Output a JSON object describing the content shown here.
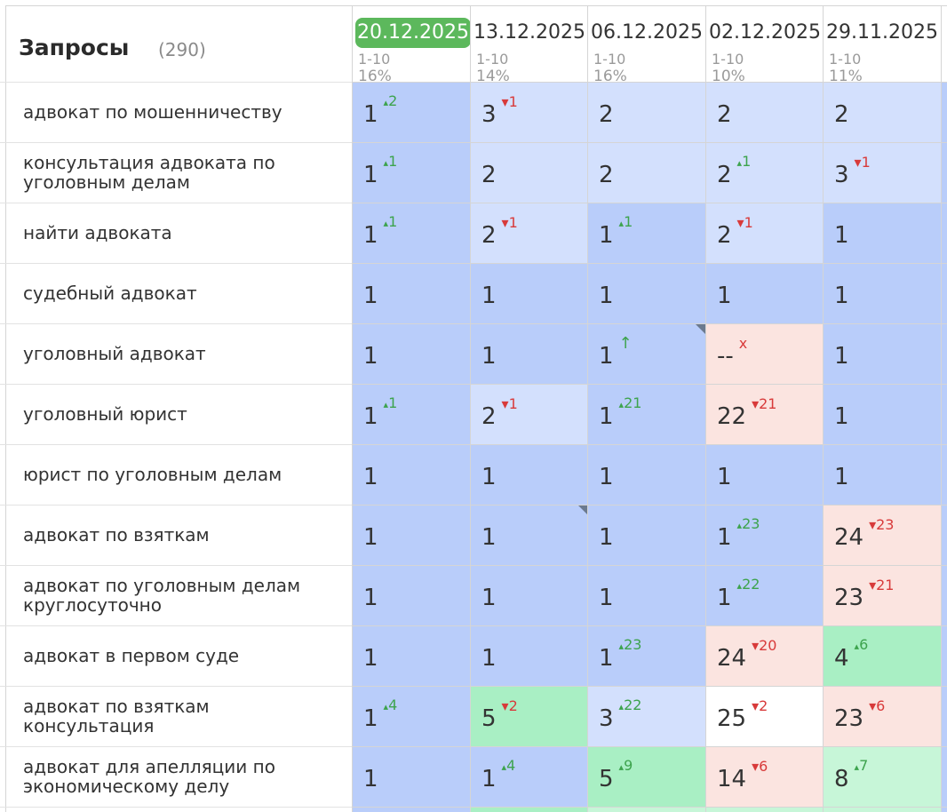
{
  "header": {
    "title": "Запросы",
    "count": "(290)",
    "dates": [
      {
        "date": "20.12.2025",
        "range": "1-10",
        "share": "16%",
        "active": true
      },
      {
        "date": "13.12.2025",
        "range": "1-10",
        "share": "14%",
        "active": false
      },
      {
        "date": "06.12.2025",
        "range": "1-10",
        "share": "16%",
        "active": false
      },
      {
        "date": "02.12.2025",
        "range": "1-10",
        "share": "10%",
        "active": false
      },
      {
        "date": "29.11.2025",
        "range": "1-10",
        "share": "11%",
        "active": false
      }
    ]
  },
  "colors": {
    "blue_strong": "#b9cdfa",
    "blue_light": "#d3e0fd",
    "green": "#a9efc4",
    "green_light": "#c7f6d8",
    "pink": "#fbe4e0",
    "white": "#ffffff"
  },
  "rows": [
    {
      "query": "адвокат по мошенничеству",
      "cells": [
        {
          "pos": "1",
          "delta": "2",
          "dir": "up",
          "bg": "blue_strong"
        },
        {
          "pos": "3",
          "delta": "1",
          "dir": "down",
          "bg": "blue_light"
        },
        {
          "pos": "2",
          "delta": "",
          "dir": "",
          "bg": "blue_light"
        },
        {
          "pos": "2",
          "delta": "",
          "dir": "",
          "bg": "blue_light"
        },
        {
          "pos": "2",
          "delta": "",
          "dir": "",
          "bg": "blue_light"
        }
      ]
    },
    {
      "query": "консультация адвоката по уголовным делам",
      "cells": [
        {
          "pos": "1",
          "delta": "1",
          "dir": "up",
          "bg": "blue_strong"
        },
        {
          "pos": "2",
          "delta": "",
          "dir": "",
          "bg": "blue_light"
        },
        {
          "pos": "2",
          "delta": "",
          "dir": "",
          "bg": "blue_light"
        },
        {
          "pos": "2",
          "delta": "1",
          "dir": "up",
          "bg": "blue_light"
        },
        {
          "pos": "3",
          "delta": "1",
          "dir": "down",
          "bg": "blue_light"
        }
      ]
    },
    {
      "query": "найти адвоката",
      "cells": [
        {
          "pos": "1",
          "delta": "1",
          "dir": "up",
          "bg": "blue_strong"
        },
        {
          "pos": "2",
          "delta": "1",
          "dir": "down",
          "bg": "blue_light"
        },
        {
          "pos": "1",
          "delta": "1",
          "dir": "up",
          "bg": "blue_strong"
        },
        {
          "pos": "2",
          "delta": "1",
          "dir": "down",
          "bg": "blue_light"
        },
        {
          "pos": "1",
          "delta": "",
          "dir": "",
          "bg": "blue_strong"
        }
      ]
    },
    {
      "query": "судебный адвокат",
      "cells": [
        {
          "pos": "1",
          "delta": "",
          "dir": "",
          "bg": "blue_strong"
        },
        {
          "pos": "1",
          "delta": "",
          "dir": "",
          "bg": "blue_strong"
        },
        {
          "pos": "1",
          "delta": "",
          "dir": "",
          "bg": "blue_strong"
        },
        {
          "pos": "1",
          "delta": "",
          "dir": "",
          "bg": "blue_strong"
        },
        {
          "pos": "1",
          "delta": "",
          "dir": "",
          "bg": "blue_strong"
        }
      ]
    },
    {
      "query": "уголовный адвокат",
      "cells": [
        {
          "pos": "1",
          "delta": "",
          "dir": "",
          "bg": "blue_strong"
        },
        {
          "pos": "1",
          "delta": "",
          "dir": "",
          "bg": "blue_strong"
        },
        {
          "pos": "1",
          "delta": "↑",
          "dir": "arrow",
          "bg": "blue_strong",
          "corner": true
        },
        {
          "pos": "--",
          "delta": "x",
          "dir": "x",
          "bg": "pink"
        },
        {
          "pos": "1",
          "delta": "",
          "dir": "",
          "bg": "blue_strong"
        }
      ]
    },
    {
      "query": "уголовный юрист",
      "cells": [
        {
          "pos": "1",
          "delta": "1",
          "dir": "up",
          "bg": "blue_strong"
        },
        {
          "pos": "2",
          "delta": "1",
          "dir": "down",
          "bg": "blue_light"
        },
        {
          "pos": "1",
          "delta": "21",
          "dir": "up",
          "bg": "blue_strong"
        },
        {
          "pos": "22",
          "delta": "21",
          "dir": "down",
          "bg": "pink"
        },
        {
          "pos": "1",
          "delta": "",
          "dir": "",
          "bg": "blue_strong"
        }
      ]
    },
    {
      "query": "юрист по уголовным делам",
      "cells": [
        {
          "pos": "1",
          "delta": "",
          "dir": "",
          "bg": "blue_strong"
        },
        {
          "pos": "1",
          "delta": "",
          "dir": "",
          "bg": "blue_strong"
        },
        {
          "pos": "1",
          "delta": "",
          "dir": "",
          "bg": "blue_strong"
        },
        {
          "pos": "1",
          "delta": "",
          "dir": "",
          "bg": "blue_strong"
        },
        {
          "pos": "1",
          "delta": "",
          "dir": "",
          "bg": "blue_strong"
        }
      ]
    },
    {
      "query": "адвокат по взяткам",
      "cells": [
        {
          "pos": "1",
          "delta": "",
          "dir": "",
          "bg": "blue_strong"
        },
        {
          "pos": "1",
          "delta": "",
          "dir": "",
          "bg": "blue_strong",
          "corner": true
        },
        {
          "pos": "1",
          "delta": "",
          "dir": "",
          "bg": "blue_strong"
        },
        {
          "pos": "1",
          "delta": "23",
          "dir": "up",
          "bg": "blue_strong"
        },
        {
          "pos": "24",
          "delta": "23",
          "dir": "down",
          "bg": "pink"
        }
      ]
    },
    {
      "query": "адвокат по уголовным делам круглосуточно",
      "cells": [
        {
          "pos": "1",
          "delta": "",
          "dir": "",
          "bg": "blue_strong"
        },
        {
          "pos": "1",
          "delta": "",
          "dir": "",
          "bg": "blue_strong"
        },
        {
          "pos": "1",
          "delta": "",
          "dir": "",
          "bg": "blue_strong"
        },
        {
          "pos": "1",
          "delta": "22",
          "dir": "up",
          "bg": "blue_strong"
        },
        {
          "pos": "23",
          "delta": "21",
          "dir": "down",
          "bg": "pink"
        }
      ]
    },
    {
      "query": "адвокат в первом суде",
      "cells": [
        {
          "pos": "1",
          "delta": "",
          "dir": "",
          "bg": "blue_strong"
        },
        {
          "pos": "1",
          "delta": "",
          "dir": "",
          "bg": "blue_strong"
        },
        {
          "pos": "1",
          "delta": "23",
          "dir": "up",
          "bg": "blue_strong"
        },
        {
          "pos": "24",
          "delta": "20",
          "dir": "down",
          "bg": "pink"
        },
        {
          "pos": "4",
          "delta": "6",
          "dir": "up",
          "bg": "green"
        }
      ]
    },
    {
      "query": "адвокат по взяткам консультация",
      "cells": [
        {
          "pos": "1",
          "delta": "4",
          "dir": "up",
          "bg": "blue_strong"
        },
        {
          "pos": "5",
          "delta": "2",
          "dir": "down",
          "bg": "green"
        },
        {
          "pos": "3",
          "delta": "22",
          "dir": "up",
          "bg": "blue_light"
        },
        {
          "pos": "25",
          "delta": "2",
          "dir": "down",
          "bg": "white"
        },
        {
          "pos": "23",
          "delta": "6",
          "dir": "down",
          "bg": "pink"
        }
      ]
    },
    {
      "query": "адвокат для апелляции по экономическому делу",
      "cells": [
        {
          "pos": "1",
          "delta": "",
          "dir": "",
          "bg": "blue_strong"
        },
        {
          "pos": "1",
          "delta": "4",
          "dir": "up",
          "bg": "blue_strong"
        },
        {
          "pos": "5",
          "delta": "9",
          "dir": "up",
          "bg": "green"
        },
        {
          "pos": "14",
          "delta": "6",
          "dir": "down",
          "bg": "pink"
        },
        {
          "pos": "8",
          "delta": "7",
          "dir": "up",
          "bg": "green_light"
        }
      ]
    }
  ]
}
